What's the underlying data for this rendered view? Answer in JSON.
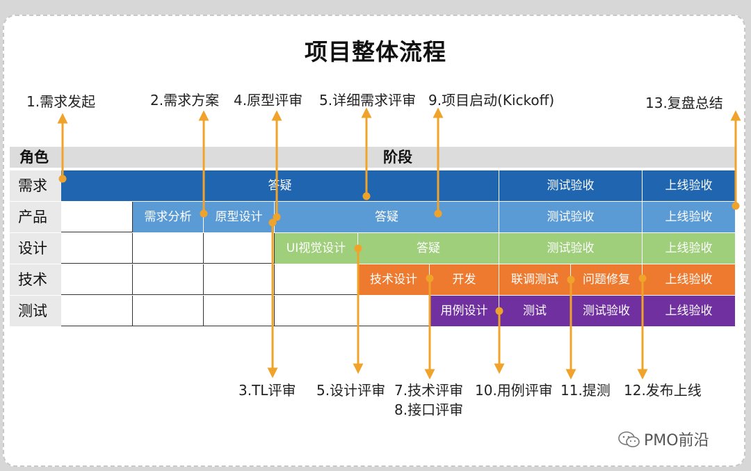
{
  "title": "项目整体流程",
  "header": {
    "role_label": "角色",
    "stage_label": "阶段"
  },
  "roles": [
    "需求",
    "产品",
    "设计",
    "技术",
    "测试"
  ],
  "colors": {
    "demand": "#1f65b0",
    "product": "#5b9bd5",
    "design": "#9fcf7b",
    "tech": "#ee7a2f",
    "test": "#7030a0",
    "arrow": "#f0a32b"
  },
  "rows": {
    "demand": [
      "答疑",
      "测试验收",
      "上线验收"
    ],
    "product": [
      "需求分析",
      "原型设计",
      "答疑",
      "测试验收",
      "上线验收"
    ],
    "design": [
      "UI视觉设计",
      "答疑",
      "测试验收",
      "上线验收"
    ],
    "tech": [
      "技术设计",
      "开发",
      "联调测试",
      "问题修复",
      "上线验收"
    ],
    "test": [
      "用例设计",
      "测试",
      "测试验收",
      "上线验收"
    ]
  },
  "top_labels": [
    "1.需求发起",
    "2.需求方案",
    "4.原型评审",
    "5.详细需求评审",
    "9.项目启动(Kickoff)",
    "13.复盘总结"
  ],
  "bottom_labels": [
    "3.TL评审",
    "5.设计评审",
    "7.技术评审",
    "8.接口评审",
    "10.用例评审",
    "11.提测",
    "12.发布上线"
  ],
  "footer": {
    "brand": "PMO前沿",
    "icon": "wechat-icon"
  }
}
